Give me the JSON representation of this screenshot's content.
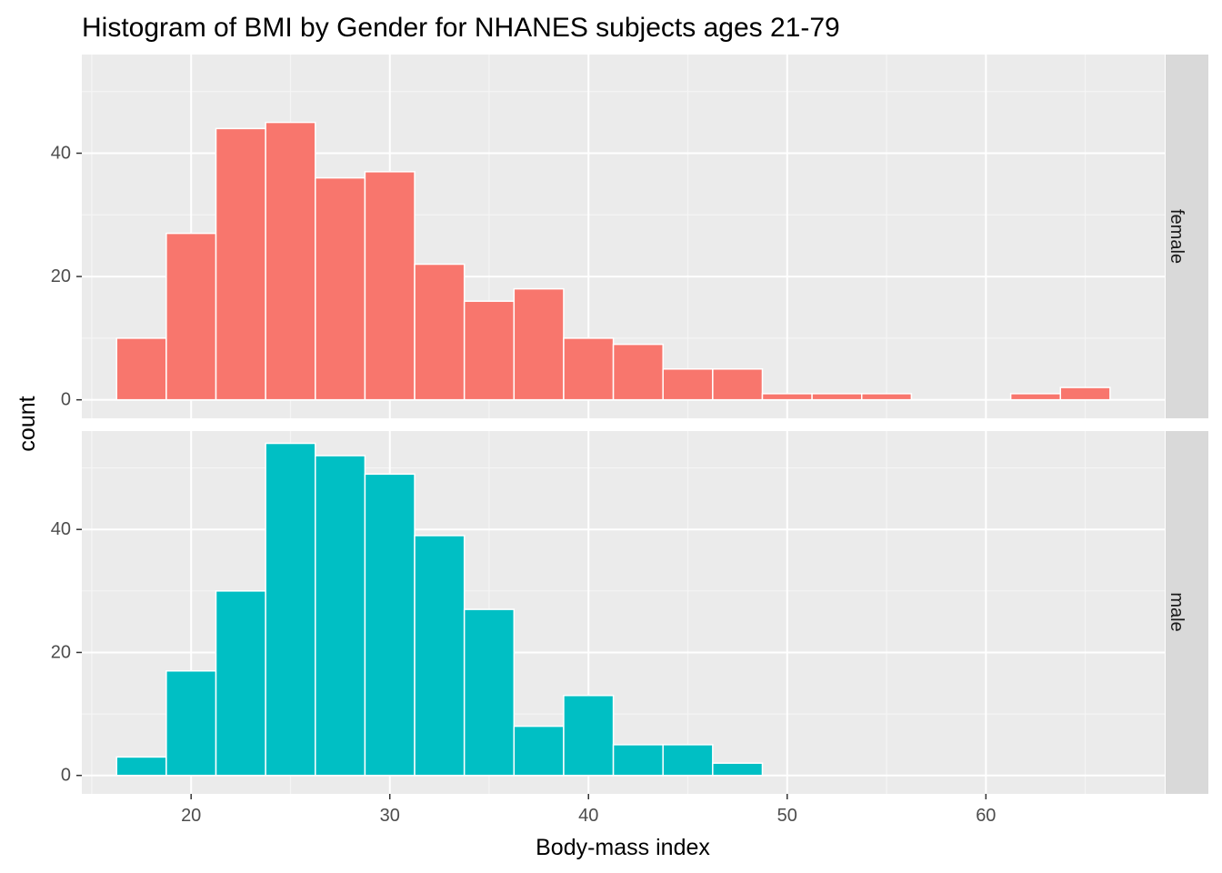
{
  "chart_data": {
    "type": "bar",
    "title": "Histogram of BMI by Gender for NHANES subjects ages 21-79",
    "xlabel": "Body-mass index",
    "ylabel": "count",
    "xlim": [
      14.5,
      69
    ],
    "ylim": [
      -3,
      56
    ],
    "x_ticks": [
      20,
      30,
      40,
      50,
      60
    ],
    "y_ticks": [
      0,
      20,
      40
    ],
    "bin_width": 2.5,
    "bin_starts": [
      16.25,
      18.75,
      21.25,
      23.75,
      26.25,
      28.75,
      31.25,
      33.75,
      36.25,
      38.75,
      41.25,
      43.75,
      46.25,
      48.75,
      51.25,
      53.75,
      56.25,
      58.75,
      61.25,
      63.75
    ],
    "grid": true,
    "facets": [
      {
        "label": "female",
        "color": "#F8766D",
        "values": [
          10,
          27,
          44,
          45,
          36,
          37,
          22,
          16,
          18,
          10,
          9,
          5,
          5,
          1,
          1,
          1,
          0,
          0,
          1,
          2
        ]
      },
      {
        "label": "male",
        "color": "#00BFC4",
        "values": [
          3,
          17,
          30,
          54,
          52,
          49,
          39,
          27,
          8,
          13,
          5,
          5,
          2,
          0,
          0,
          0,
          0,
          0,
          0,
          0
        ]
      }
    ]
  }
}
